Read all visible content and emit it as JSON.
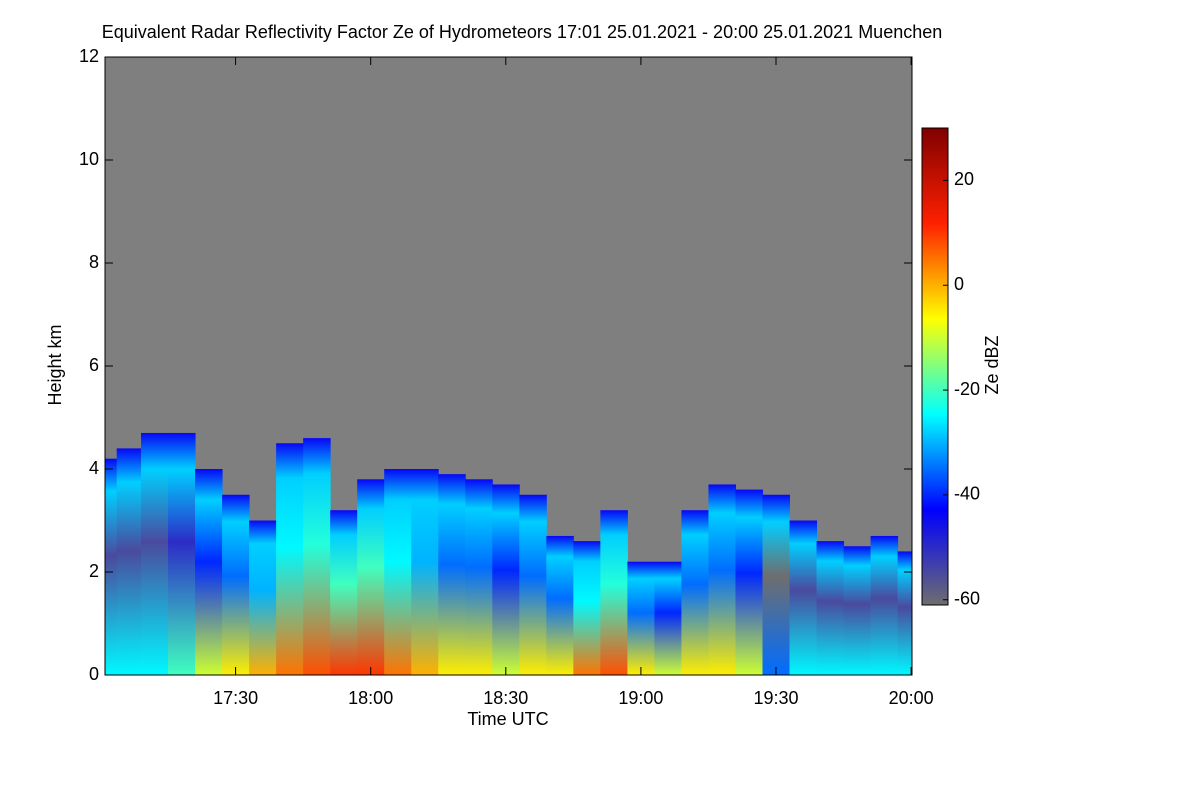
{
  "chart_data": {
    "type": "time-height",
    "title": "Equivalent Radar Reflectivity Factor Ze of Hydrometeors   17:01 25.01.2021 - 20:00 25.01.2021 Muenchen",
    "x_label": "Time UTC",
    "y_label": "Height km",
    "xlim": [
      17.0167,
      20.0033
    ],
    "xticks": [
      {
        "value": 17.5,
        "label": "17:30"
      },
      {
        "value": 18.0,
        "label": "18:00"
      },
      {
        "value": 18.5,
        "label": "18:30"
      },
      {
        "value": 19.0,
        "label": "19:00"
      },
      {
        "value": 19.5,
        "label": "19:30"
      },
      {
        "value": 20.0,
        "label": "20:00"
      }
    ],
    "ylim": [
      0,
      12
    ],
    "yticks": [
      0,
      2,
      4,
      6,
      8,
      10,
      12
    ],
    "background": "#7f7f7f",
    "x": [
      17.02,
      17.1,
      17.2,
      17.3,
      17.4,
      17.5,
      17.6,
      17.7,
      17.8,
      17.9,
      18.0,
      18.1,
      18.2,
      18.3,
      18.4,
      18.5,
      18.6,
      18.7,
      18.8,
      18.9,
      19.0,
      19.1,
      19.2,
      19.3,
      19.4,
      19.5,
      19.6,
      19.7,
      19.8,
      19.9,
      20.0
    ],
    "values": [
      4.2,
      4.4,
      4.7,
      4.7,
      4.0,
      3.5,
      3.0,
      4.5,
      4.6,
      3.2,
      3.8,
      4.0,
      4.0,
      3.9,
      3.8,
      3.7,
      3.5,
      2.7,
      2.6,
      3.2,
      2.2,
      2.2,
      3.2,
      3.7,
      3.6,
      3.5,
      3.0,
      2.6,
      2.5,
      2.7,
      2.4
    ],
    "ze": [
      -25,
      -25,
      -25,
      -20,
      -10,
      -5,
      0,
      5,
      8,
      10,
      10,
      5,
      0,
      -5,
      -5,
      -10,
      -5,
      -5,
      5,
      8,
      -5,
      -10,
      -5,
      -5,
      -10,
      -35,
      -25,
      -25,
      -25,
      -25,
      -25
    ],
    "colorbar": {
      "label": "Ze dBZ",
      "lim": [
        -61,
        30
      ],
      "ticks": [
        -60,
        -40,
        -20,
        0,
        20
      ],
      "colors": [
        "#6e6e6e",
        "#0000ff",
        "#00ffff",
        "#ffff00",
        "#ff2000",
        "#800000"
      ]
    }
  }
}
